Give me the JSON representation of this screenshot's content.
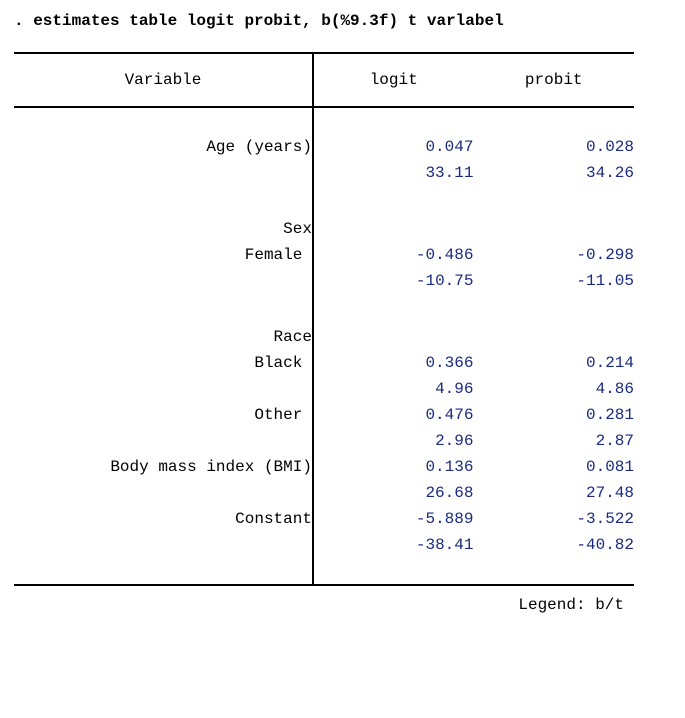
{
  "command": ". estimates table logit probit, b(%9.3f) t varlabel",
  "table": {
    "header_variable": "Variable",
    "models": [
      "logit",
      "probit"
    ],
    "value_color": "#1a2a80",
    "rows": [
      {
        "type": "data",
        "label": "Age (years)",
        "logit": "0.047",
        "probit": "0.028"
      },
      {
        "type": "data",
        "label": "",
        "logit": "33.11",
        "probit": "34.26"
      },
      {
        "type": "gap"
      },
      {
        "type": "data",
        "label": "Sex",
        "logit": "",
        "probit": ""
      },
      {
        "type": "data",
        "label": "Female ",
        "logit": "-0.486",
        "probit": "-0.298"
      },
      {
        "type": "data",
        "label": "",
        "logit": "-10.75",
        "probit": "-11.05"
      },
      {
        "type": "gap"
      },
      {
        "type": "data",
        "label": "Race",
        "logit": "",
        "probit": ""
      },
      {
        "type": "data",
        "label": "Black ",
        "logit": "0.366",
        "probit": "0.214"
      },
      {
        "type": "data",
        "label": "",
        "logit": "4.96",
        "probit": "4.86"
      },
      {
        "type": "data",
        "label": "Other ",
        "logit": "0.476",
        "probit": "0.281"
      },
      {
        "type": "data",
        "label": "",
        "logit": "2.96",
        "probit": "2.87"
      },
      {
        "type": "data",
        "label": "Body mass index (BMI)",
        "logit": "0.136",
        "probit": "0.081"
      },
      {
        "type": "data",
        "label": "",
        "logit": "26.68",
        "probit": "27.48"
      },
      {
        "type": "data",
        "label": "Constant",
        "logit": "-5.889",
        "probit": "-3.522"
      },
      {
        "type": "data",
        "label": "",
        "logit": "-38.41",
        "probit": "-40.82"
      }
    ]
  },
  "legend": "Legend: b/t"
}
